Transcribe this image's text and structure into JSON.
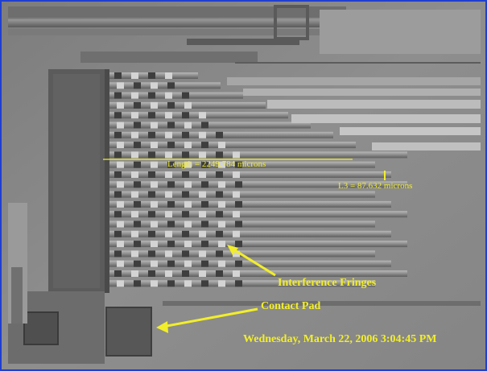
{
  "annotations": {
    "length": "Length = 2249.784 microns",
    "l3": "L3 = 87.632 microns",
    "fringes": "Interference Fringes",
    "contact_pad": "Contact Pad"
  },
  "timestamp": "Wednesday, March 22, 2006 3:04:45 PM",
  "colors": {
    "frame_border": "#1f3fd0",
    "annotation": "#f2ee2a",
    "background": "#8a8a8a"
  }
}
